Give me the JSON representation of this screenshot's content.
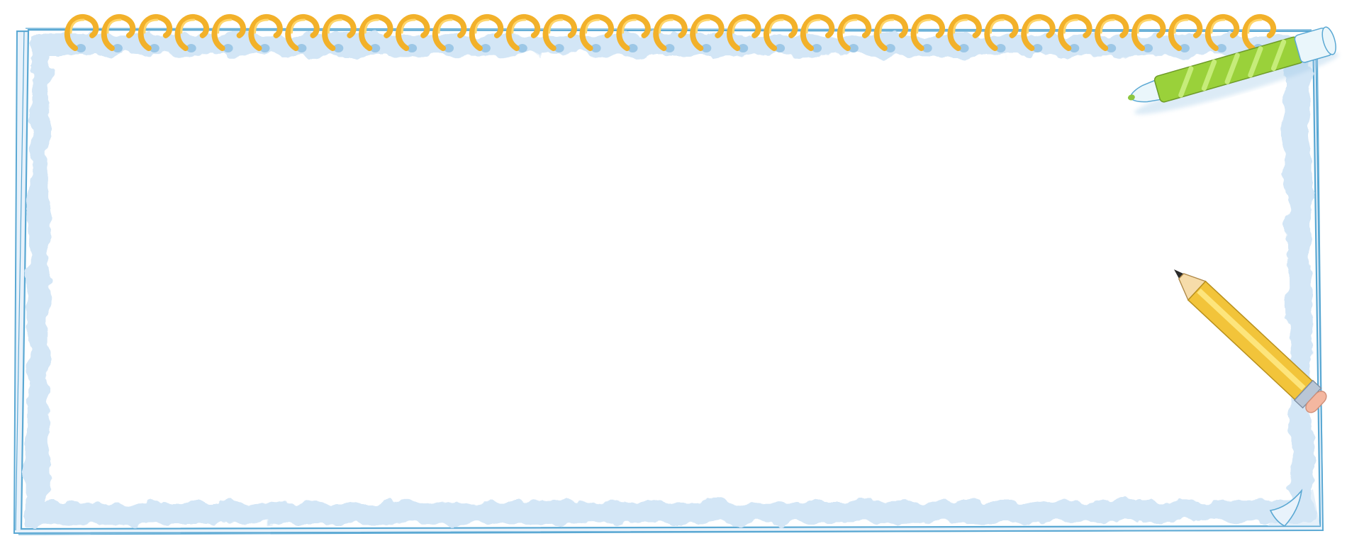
{
  "scene": {
    "kind": "spiral notepad frame illustration",
    "spiral_ring_count": 33,
    "items": [
      "notepad-page",
      "spiral-binding",
      "green-marker",
      "yellow-pencil",
      "curled-page-corner"
    ]
  },
  "colors": {
    "background": "#ffffff",
    "page_fill": "#ffffff",
    "page_wash": "#d3e6f6",
    "page_wash_light": "#e8f2fb",
    "page_outline": "#5aa8d3",
    "ring_gold": "#f2b12a",
    "ring_gold_light": "#ffd66b",
    "ring_shadow": "#9cc7e6",
    "marker_green": "#9ad13a",
    "marker_green_light": "#c6ec7a",
    "marker_cap": "#eaf6fb",
    "marker_tip": "#8cc63f",
    "pencil_yellow": "#f2c43a",
    "pencil_yellow_light": "#fde57c",
    "pencil_wood": "#f6dcaa",
    "pencil_lead": "#2b2b2b",
    "pencil_ferrule": "#b9c6d6",
    "pencil_eraser": "#f4b7a0"
  }
}
